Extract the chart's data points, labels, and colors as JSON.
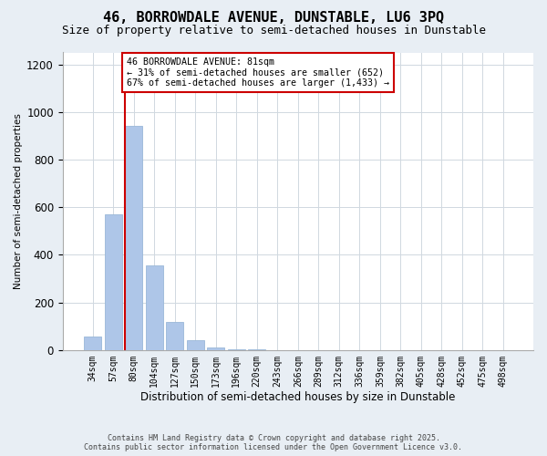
{
  "title": "46, BORROWDALE AVENUE, DUNSTABLE, LU6 3PQ",
  "subtitle": "Size of property relative to semi-detached houses in Dunstable",
  "xlabel": "Distribution of semi-detached houses by size in Dunstable",
  "ylabel": "Number of semi-detached properties",
  "categories": [
    "34sqm",
    "57sqm",
    "80sqm",
    "104sqm",
    "127sqm",
    "150sqm",
    "173sqm",
    "196sqm",
    "220sqm",
    "243sqm",
    "266sqm",
    "289sqm",
    "312sqm",
    "336sqm",
    "359sqm",
    "382sqm",
    "405sqm",
    "428sqm",
    "452sqm",
    "475sqm",
    "498sqm"
  ],
  "values": [
    57,
    570,
    940,
    355,
    120,
    40,
    10,
    3,
    2,
    1,
    1,
    0,
    0,
    0,
    0,
    0,
    0,
    0,
    0,
    0,
    0
  ],
  "bar_color": "#aec6e8",
  "bar_edge_color": "#9ab8d8",
  "property_line_color": "#cc0000",
  "annotation_text": "46 BORROWDALE AVENUE: 81sqm\n← 31% of semi-detached houses are smaller (652)\n67% of semi-detached houses are larger (1,433) →",
  "annotation_box_color": "#ffffff",
  "annotation_box_edge": "#cc0000",
  "ylim": [
    0,
    1250
  ],
  "yticks": [
    0,
    200,
    400,
    600,
    800,
    1000,
    1200
  ],
  "footer1": "Contains HM Land Registry data © Crown copyright and database right 2025.",
  "footer2": "Contains public sector information licensed under the Open Government Licence v3.0.",
  "bg_color": "#e8eef4",
  "plot_bg_color": "#ffffff",
  "title_fontsize": 11,
  "subtitle_fontsize": 9,
  "grid_color": "#d0d8e0"
}
